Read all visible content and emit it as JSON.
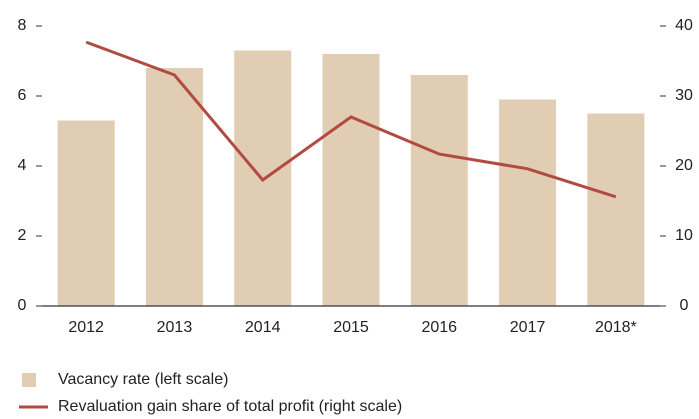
{
  "chart_data": {
    "type": "bar-line",
    "categories": [
      "2012",
      "2013",
      "2014",
      "2015",
      "2016",
      "2017",
      "2018*"
    ],
    "series": [
      {
        "name": "Vacancy rate (left scale)",
        "type": "bar",
        "color": "#e0cdb3",
        "values": [
          5.3,
          6.8,
          7.3,
          7.2,
          6.6,
          5.9,
          5.5
        ]
      },
      {
        "name": "Revaluation gain share of total profit (right scale)",
        "type": "line",
        "axis": "y2",
        "color": "#b24a40",
        "values": [
          37.7,
          33,
          18,
          27,
          21.7,
          19.6,
          15.6
        ]
      }
    ],
    "ylim": [
      0,
      8
    ],
    "yticks": [
      0,
      2,
      4,
      6,
      8
    ],
    "y2lim": [
      0,
      40
    ],
    "y2ticks": [
      0,
      10,
      20,
      30,
      40
    ],
    "grid": false,
    "legend": "bottom-left"
  }
}
